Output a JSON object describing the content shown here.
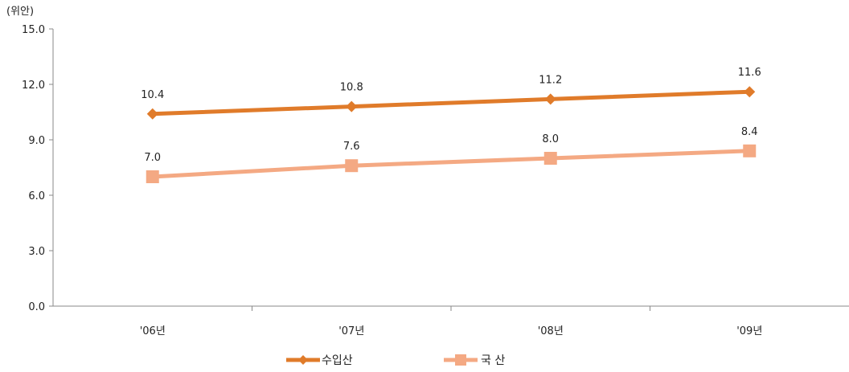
{
  "chart_data": {
    "type": "line",
    "unit_label": "(위안)",
    "categories": [
      "'06년",
      "'07년",
      "'08년",
      "'09년"
    ],
    "ylim": [
      0,
      15
    ],
    "yticks": [
      "0.0",
      "3.0",
      "6.0",
      "9.0",
      "12.0",
      "15.0"
    ],
    "grid": false,
    "legend_position": "bottom",
    "series": [
      {
        "name": "수입산",
        "values": [
          10.4,
          10.8,
          11.2,
          11.6
        ],
        "labels": [
          "10.4",
          "10.8",
          "11.2",
          "11.6"
        ],
        "color": "#E07B2A",
        "marker": "diamond"
      },
      {
        "name": "국 산",
        "values": [
          7.0,
          7.6,
          8.0,
          8.4
        ],
        "labels": [
          "7.0",
          "7.6",
          "8.0",
          "8.4"
        ],
        "color": "#F4A983",
        "marker": "square"
      }
    ]
  }
}
